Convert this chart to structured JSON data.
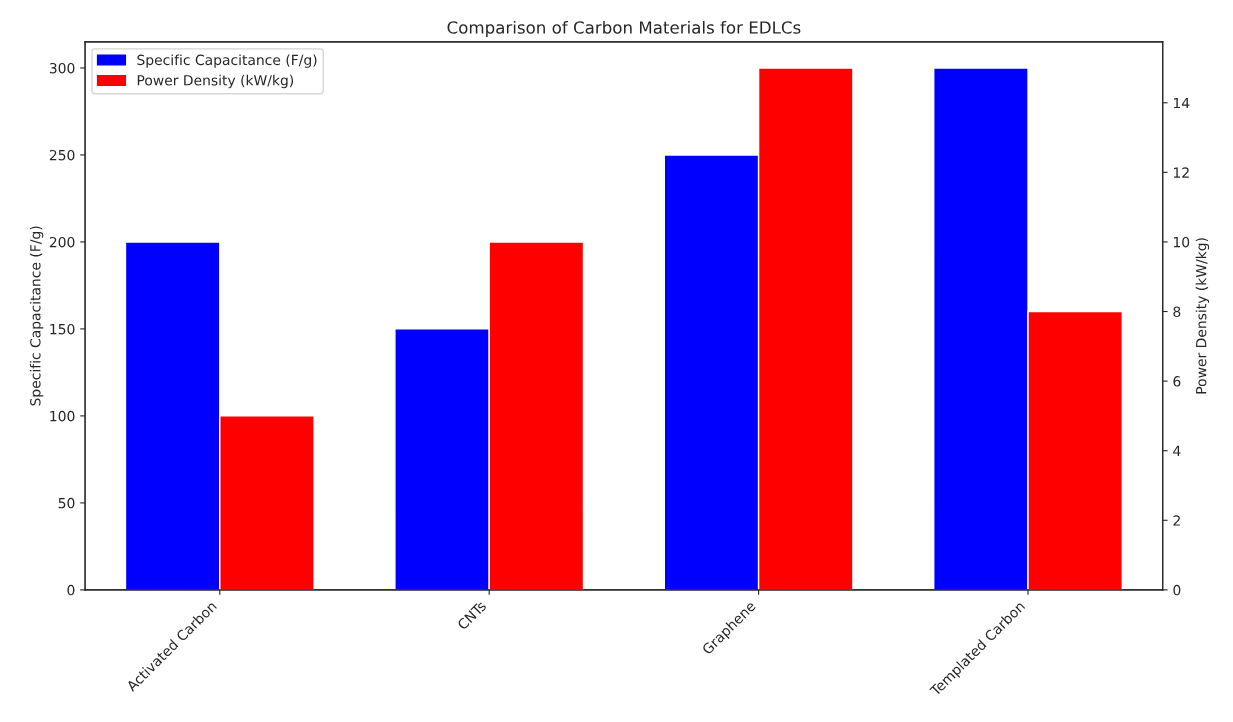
{
  "chart_data": {
    "type": "bar",
    "title": "Comparison of Carbon Materials for EDLCs",
    "categories": [
      "Activated Carbon",
      "CNTs",
      "Graphene",
      "Templated Carbon"
    ],
    "ylabel": "Specific Capacitance (F/g)",
    "y2label": "Power Density (kW/kg)",
    "series": [
      {
        "name": "Specific Capacitance (F/g)",
        "color": "#0000ff",
        "values": [
          200,
          150,
          250,
          300
        ]
      },
      {
        "name": "Power Density (kW/kg)",
        "color": "#ff0000",
        "values": [
          5,
          10,
          15,
          8
        ],
        "axis": "y2"
      }
    ],
    "ylim": [
      0,
      315
    ],
    "yticks": [
      0,
      50,
      100,
      150,
      200,
      250,
      300
    ],
    "y2lim": [
      0,
      15.75
    ],
    "y2ticks": [
      0,
      2,
      4,
      6,
      8,
      10,
      12,
      14
    ],
    "legend": "top left",
    "grid": false
  }
}
